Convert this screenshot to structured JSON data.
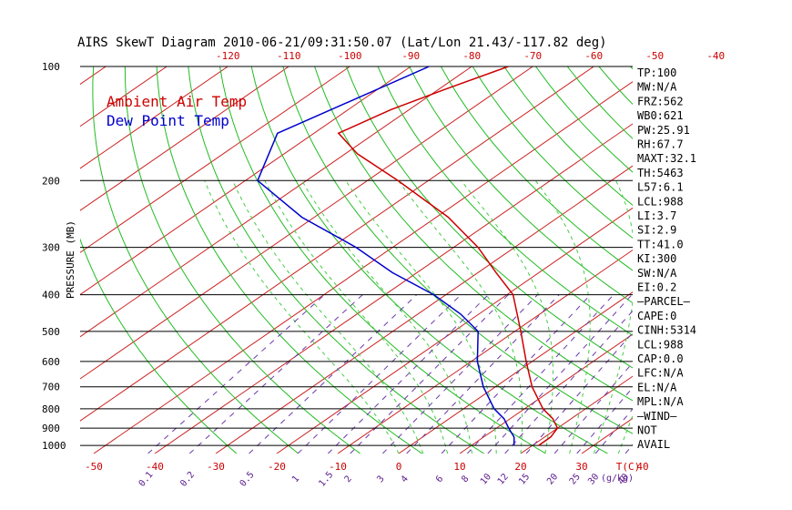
{
  "chart_data": {
    "type": "line",
    "title": "AIRS SkewT Diagram 2010-06-21/09:31:50.07 (Lat/Lon 21.43/-117.82 deg)",
    "ylabel": "PRESSURE (MB)",
    "xlabel": "T(C)",
    "mixing_ratio_label": "(g/kg)",
    "pressure_ticks": [
      "100",
      "200",
      "300",
      "400",
      "500",
      "600",
      "700",
      "800",
      "900",
      "1000"
    ],
    "bottom_temp_ticks": [
      "-50",
      "-40",
      "-30",
      "-20",
      "-10",
      "0",
      "10",
      "20",
      "30",
      "40"
    ],
    "top_temp_ticks": [
      "-120",
      "-110",
      "-100",
      "-90",
      "-80",
      "-70",
      "-60",
      "-50",
      "-40"
    ],
    "mixing_ratio_ticks": [
      "0.1",
      "0.2",
      "0.5",
      "1",
      "1.5",
      "2",
      "3",
      "4",
      "6",
      "8",
      "10",
      "12",
      "15",
      "20",
      "25",
      "30",
      "40"
    ],
    "legend": [
      {
        "name": "Ambient Air Temp",
        "color": "#cc0000"
      },
      {
        "name": "Dew Point Temp",
        "color": "#0000cc"
      }
    ],
    "series": [
      {
        "name": "Ambient Air Temp",
        "points": [
          {
            "p": 100,
            "t": -74
          },
          {
            "p": 115,
            "t": -79
          },
          {
            "p": 130,
            "t": -83
          },
          {
            "p": 150,
            "t": -86
          },
          {
            "p": 170,
            "t": -78
          },
          {
            "p": 200,
            "t": -65
          },
          {
            "p": 250,
            "t": -48
          },
          {
            "p": 300,
            "t": -36
          },
          {
            "p": 350,
            "t": -27
          },
          {
            "p": 400,
            "t": -19
          },
          {
            "p": 500,
            "t": -9
          },
          {
            "p": 600,
            "t": -1
          },
          {
            "p": 700,
            "t": 6
          },
          {
            "p": 800,
            "t": 13
          },
          {
            "p": 850,
            "t": 17
          },
          {
            "p": 900,
            "t": 20
          },
          {
            "p": 950,
            "t": 21
          },
          {
            "p": 1000,
            "t": 21
          }
        ]
      },
      {
        "name": "Dew Point Temp",
        "points": [
          {
            "p": 100,
            "t": -87
          },
          {
            "p": 150,
            "t": -96
          },
          {
            "p": 200,
            "t": -88
          },
          {
            "p": 250,
            "t": -72
          },
          {
            "p": 300,
            "t": -56
          },
          {
            "p": 350,
            "t": -44
          },
          {
            "p": 400,
            "t": -32
          },
          {
            "p": 450,
            "t": -23
          },
          {
            "p": 500,
            "t": -16
          },
          {
            "p": 600,
            "t": -9
          },
          {
            "p": 700,
            "t": -2
          },
          {
            "p": 800,
            "t": 5
          },
          {
            "p": 850,
            "t": 9
          },
          {
            "p": 900,
            "t": 12
          },
          {
            "p": 950,
            "t": 15
          },
          {
            "p": 1000,
            "t": 17
          }
        ]
      }
    ],
    "stats": [
      "TP:100",
      "MW:N/A",
      "FRZ:562",
      "WB0:621",
      "PW:25.91",
      "RH:67.7",
      "MAXT:32.1",
      "TH:5463",
      "L57:6.1",
      "LCL:988",
      "LI:3.7",
      "SI:2.9",
      "TT:41.0",
      "KI:300",
      "SW:N/A",
      "EI:0.2",
      "—PARCEL—",
      "CAPE:0",
      "CINH:5314",
      "LCL:988",
      "CAP:0.0",
      "LFC:N/A",
      "EL:N/A",
      "MPL:N/A",
      "—WIND—",
      "NOT",
      "AVAIL"
    ]
  }
}
